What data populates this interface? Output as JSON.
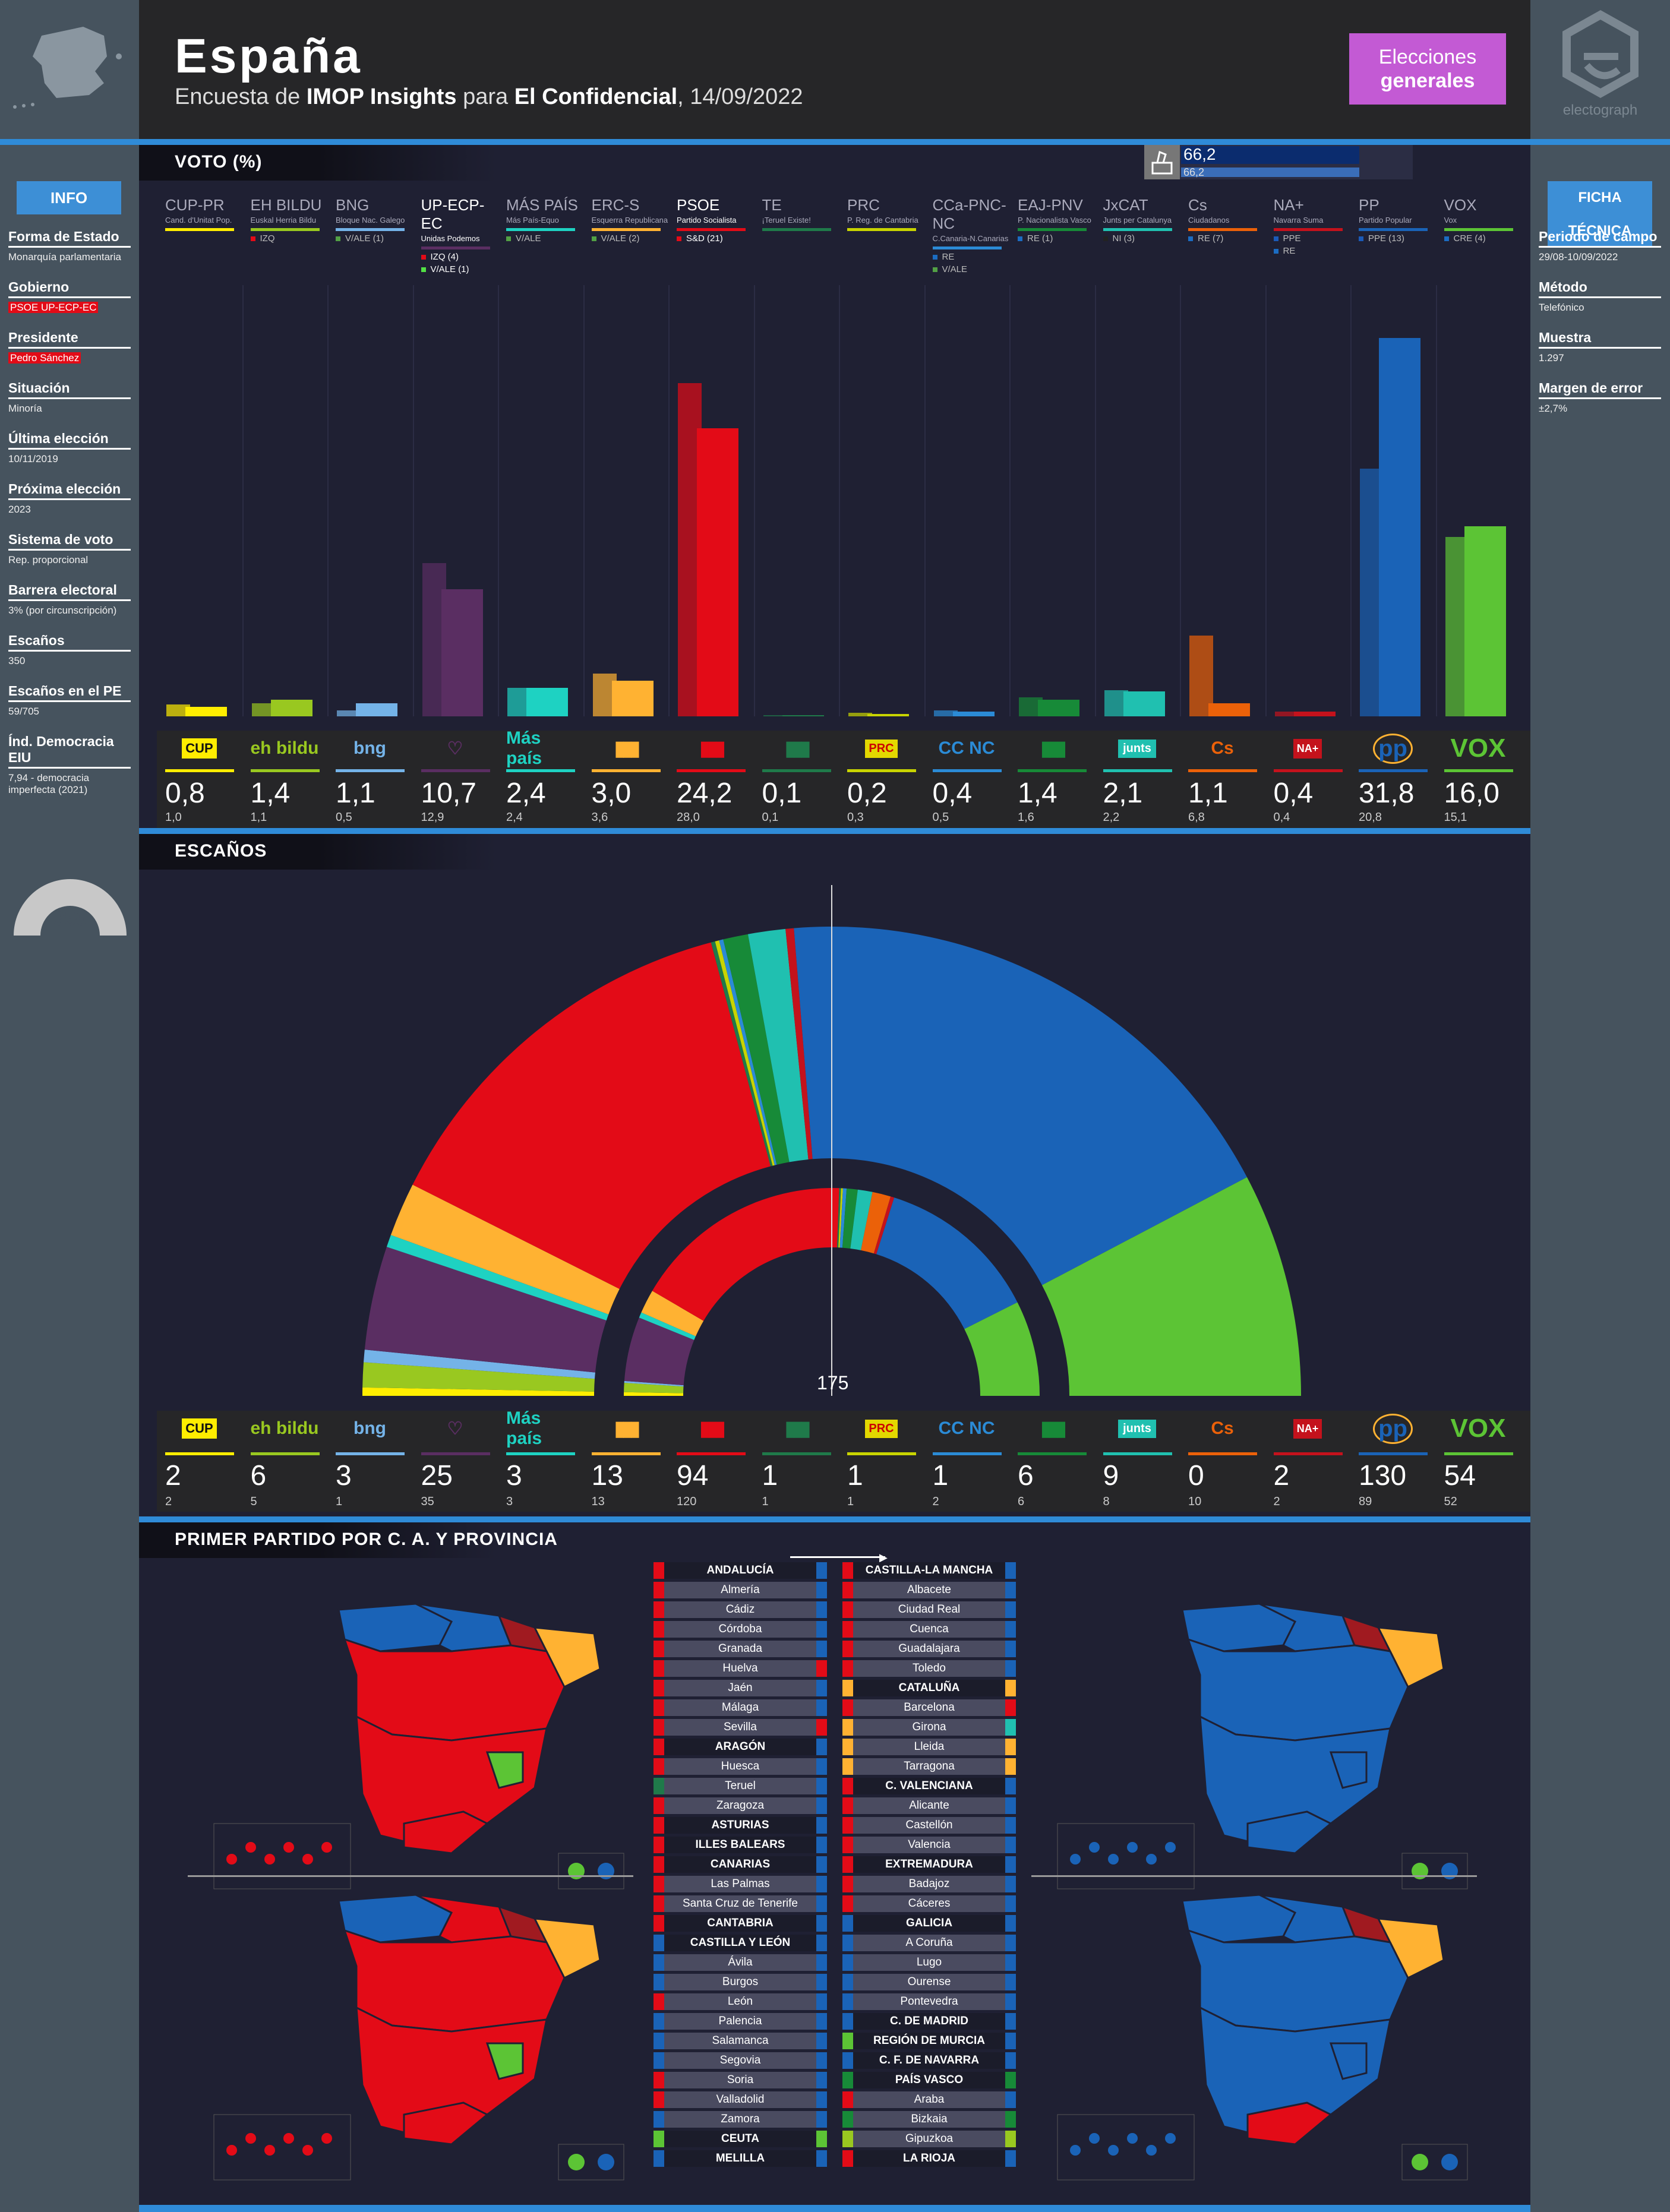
{
  "header": {
    "title": "España",
    "subtitle_prefix": "Encuesta de",
    "pollster": "IMOP Insights",
    "subtitle_mid": "para",
    "media": "El Confidencial",
    "date": "14/09/2022",
    "badge_line1": "Elecciones",
    "badge_line2": "generales",
    "brand": "electograph"
  },
  "info": {
    "button": "INFO",
    "items": [
      {
        "label": "Forma de Estado",
        "value": "Monarquía parlamentaria"
      },
      {
        "label": "Gobierno",
        "value": "PSOE UP-ECP-EC"
      },
      {
        "label": "Presidente",
        "value": "Pedro Sánchez"
      },
      {
        "label": "Situación",
        "value": "Minoría"
      },
      {
        "label": "Última elección",
        "value": "10/11/2019"
      },
      {
        "label": "Próxima elección",
        "value": "2023"
      },
      {
        "label": "Sistema de voto",
        "value": "Rep. proporcional"
      },
      {
        "label": "Barrera electoral",
        "value": "3% (por circunscripción)"
      },
      {
        "label": "Escaños",
        "value": "350"
      },
      {
        "label": "Escaños en el PE",
        "value": "59/705"
      },
      {
        "label": "Índ. Democracia EIU",
        "value": "7,94 - democracia imperfecta (2021)"
      }
    ]
  },
  "ficha": {
    "button": "FICHA TÉCNICA",
    "items": [
      {
        "label": "Periodo de campo",
        "value": "29/08-10/09/2022"
      },
      {
        "label": "Método",
        "value": "Telefónico"
      },
      {
        "label": "Muestra",
        "value": "1.297"
      },
      {
        "label": "Margen de error",
        "value": "±2,7%"
      }
    ]
  },
  "vote_section": {
    "title": "VOTO (%)",
    "top_value": "66,2",
    "top_prev": "66,2"
  },
  "seats_section": {
    "title": "ESCAÑOS",
    "total": "350",
    "majority": "175"
  },
  "map_section": {
    "title": "PRIMER PARTIDO POR C. A. Y PROVINCIA"
  },
  "chart_data": {
    "type": "bar",
    "title": "VOTO (%)",
    "categories": [
      "CUP-PR",
      "EH BILDU",
      "BNG",
      "UP-ECP-EC",
      "MÁS PAÍS",
      "ERC-S",
      "PSOE",
      "TE",
      "PRC",
      "CCa-PNC-NC",
      "EAJ-PNV",
      "JxCAT",
      "Cs",
      "NA+",
      "PP",
      "VOX"
    ],
    "series": [
      {
        "name": "poll",
        "values": [
          0.8,
          1.4,
          1.1,
          10.7,
          2.4,
          3.0,
          24.2,
          0.1,
          0.2,
          0.4,
          1.4,
          2.1,
          1.1,
          0.4,
          31.8,
          16.0
        ]
      },
      {
        "name": "prev",
        "values": [
          1.0,
          1.1,
          0.5,
          12.9,
          2.4,
          3.6,
          28.0,
          0.1,
          0.3,
          0.5,
          1.6,
          2.2,
          6.8,
          0.4,
          20.8,
          15.1
        ]
      }
    ],
    "ylim": [
      0,
      36
    ]
  },
  "parties": [
    {
      "short": "CUP-PR",
      "full": "Cand. d'Unitat Pop.",
      "color": "#ffed00",
      "alliances": [],
      "vote": "0,8",
      "vote_prev": "1,0",
      "seats": "2",
      "seats_prev": "2",
      "logo": "CUP"
    },
    {
      "short": "EH BILDU",
      "full": "Euskal Herria Bildu",
      "color": "#99c820",
      "alliances": [
        {
          "t": "IZQ",
          "c": "#e30b17"
        }
      ],
      "vote": "1,4",
      "vote_prev": "1,1",
      "seats": "6",
      "seats_prev": "5",
      "logo": "eh bildu"
    },
    {
      "short": "BNG",
      "full": "Bloque Nac. Galego",
      "color": "#74b3e8",
      "alliances": [
        {
          "t": "V/ALE (1)",
          "c": "#52a045"
        }
      ],
      "vote": "1,1",
      "vote_prev": "0,5",
      "seats": "3",
      "seats_prev": "1",
      "logo": "bng"
    },
    {
      "short": "UP-ECP-EC",
      "full": "Unidas Podemos",
      "color": "#5a2e62",
      "alliances": [
        {
          "t": "IZQ (4)",
          "c": "#e30b17"
        },
        {
          "t": "V/ALE (1)",
          "c": "#52e045"
        }
      ],
      "vote": "10,7",
      "vote_prev": "12,9",
      "seats": "25",
      "seats_prev": "35",
      "logo": "♡"
    },
    {
      "short": "MÁS PAÍS",
      "full": "Más País-Equo",
      "color": "#1ed2c2",
      "alliances": [
        {
          "t": "V/ALE",
          "c": "#52a045"
        }
      ],
      "vote": "2,4",
      "vote_prev": "2,4",
      "seats": "3",
      "seats_prev": "3",
      "logo": "Más país"
    },
    {
      "short": "ERC-S",
      "full": "Esquerra Republicana",
      "color": "#ffb232",
      "alliances": [
        {
          "t": "V/ALE (2)",
          "c": "#52a045"
        }
      ],
      "vote": "3,0",
      "vote_prev": "3,6",
      "seats": "13",
      "seats_prev": "13",
      "logo": "ERC"
    },
    {
      "short": "PSOE",
      "full": "Partido Socialista",
      "color": "#e30b17",
      "alliances": [
        {
          "t": "S&D (21)",
          "c": "#e30b17"
        }
      ],
      "vote": "24,2",
      "vote_prev": "28,0",
      "seats": "94",
      "seats_prev": "120",
      "logo": "PSOE"
    },
    {
      "short": "TE",
      "full": "¡Teruel Existe!",
      "color": "#1f7a4a",
      "alliances": [],
      "vote": "0,1",
      "vote_prev": "0,1",
      "seats": "1",
      "seats_prev": "1",
      "logo": "TE"
    },
    {
      "short": "PRC",
      "full": "P. Reg. de Cantabria",
      "color": "#c8d400",
      "alliances": [],
      "vote": "0,2",
      "vote_prev": "0,3",
      "seats": "1",
      "seats_prev": "1",
      "logo": "PRC"
    },
    {
      "short": "CCa-PNC-NC",
      "full": "C.Canaria-N.Canarias",
      "color": "#2b8bd6",
      "alliances": [
        {
          "t": "RE",
          "c": "#1b6cc2"
        },
        {
          "t": "V/ALE",
          "c": "#52a045"
        }
      ],
      "vote": "0,4",
      "vote_prev": "0,5",
      "seats": "1",
      "seats_prev": "2",
      "logo": "CC NC"
    },
    {
      "short": "EAJ-PNV",
      "full": "P. Nacionalista Vasco",
      "color": "#178a38",
      "alliances": [
        {
          "t": "RE (1)",
          "c": "#1b6cc2"
        }
      ],
      "vote": "1,4",
      "vote_prev": "1,6",
      "seats": "6",
      "seats_prev": "6",
      "logo": "PNV"
    },
    {
      "short": "JxCAT",
      "full": "Junts per Catalunya",
      "color": "#20c0b0",
      "alliances": [
        {
          "t": "NI (3)",
          "c": "#222"
        }
      ],
      "vote": "2,1",
      "vote_prev": "2,2",
      "seats": "9",
      "seats_prev": "8",
      "logo": "junts"
    },
    {
      "short": "Cs",
      "full": "Ciudadanos",
      "color": "#eb6109",
      "alliances": [
        {
          "t": "RE (7)",
          "c": "#1b6cc2"
        }
      ],
      "vote": "1,1",
      "vote_prev": "6,8",
      "seats": "0",
      "seats_prev": "10",
      "logo": "Cs"
    },
    {
      "short": "NA+",
      "full": "Navarra Suma",
      "color": "#c4121c",
      "alliances": [
        {
          "t": "PPE",
          "c": "#1b5ab8"
        },
        {
          "t": "RE",
          "c": "#1b6cc2"
        }
      ],
      "vote": "0,4",
      "vote_prev": "0,4",
      "seats": "2",
      "seats_prev": "2",
      "logo": "NA+"
    },
    {
      "short": "PP",
      "full": "Partido Popular",
      "color": "#1a63b7",
      "alliances": [
        {
          "t": "PPE (13)",
          "c": "#1b5ab8"
        }
      ],
      "vote": "31,8",
      "vote_prev": "20,8",
      "seats": "130",
      "seats_prev": "89",
      "logo": "pp"
    },
    {
      "short": "VOX",
      "full": "Vox",
      "color": "#5cc435",
      "alliances": [
        {
          "t": "CRE (4)",
          "c": "#1b6cc2"
        }
      ],
      "vote": "16,0",
      "vote_prev": "15,1",
      "seats": "54",
      "seats_prev": "52",
      "logo": "VOX"
    }
  ],
  "provinces_left": [
    {
      "name": "ANDALUCÍA",
      "h": true,
      "l": "#e30b17",
      "r": "#1a63b7"
    },
    {
      "name": "Almería",
      "l": "#e30b17",
      "r": "#1a63b7"
    },
    {
      "name": "Cádiz",
      "l": "#e30b17",
      "r": "#1a63b7"
    },
    {
      "name": "Córdoba",
      "l": "#e30b17",
      "r": "#1a63b7"
    },
    {
      "name": "Granada",
      "l": "#e30b17",
      "r": "#1a63b7"
    },
    {
      "name": "Huelva",
      "l": "#e30b17",
      "r": "#e30b17"
    },
    {
      "name": "Jaén",
      "l": "#e30b17",
      "r": "#1a63b7"
    },
    {
      "name": "Málaga",
      "l": "#e30b17",
      "r": "#1a63b7"
    },
    {
      "name": "Sevilla",
      "l": "#e30b17",
      "r": "#e30b17"
    },
    {
      "name": "ARAGÓN",
      "h": true,
      "l": "#e30b17",
      "r": "#1a63b7"
    },
    {
      "name": "Huesca",
      "l": "#e30b17",
      "r": "#1a63b7"
    },
    {
      "name": "Teruel",
      "l": "#1f7a4a",
      "r": "#1a63b7"
    },
    {
      "name": "Zaragoza",
      "l": "#e30b17",
      "r": "#1a63b7"
    },
    {
      "name": "ASTURIAS",
      "h": true,
      "l": "#e30b17",
      "r": "#1a63b7"
    },
    {
      "name": "ILLES BALEARS",
      "h": true,
      "l": "#e30b17",
      "r": "#1a63b7"
    },
    {
      "name": "CANARIAS",
      "h": true,
      "l": "#e30b17",
      "r": "#1a63b7"
    },
    {
      "name": "Las Palmas",
      "l": "#e30b17",
      "r": "#1a63b7"
    },
    {
      "name": "Santa Cruz de Tenerife",
      "l": "#e30b17",
      "r": "#1a63b7"
    },
    {
      "name": "CANTABRIA",
      "h": true,
      "l": "#e30b17",
      "r": "#1a63b7"
    },
    {
      "name": "CASTILLA Y LEÓN",
      "h": true,
      "l": "#1a63b7",
      "r": "#1a63b7"
    },
    {
      "name": "Ávila",
      "l": "#1a63b7",
      "r": "#1a63b7"
    },
    {
      "name": "Burgos",
      "l": "#1a63b7",
      "r": "#1a63b7"
    },
    {
      "name": "León",
      "l": "#e30b17",
      "r": "#1a63b7"
    },
    {
      "name": "Palencia",
      "l": "#1a63b7",
      "r": "#1a63b7"
    },
    {
      "name": "Salamanca",
      "l": "#1a63b7",
      "r": "#1a63b7"
    },
    {
      "name": "Segovia",
      "l": "#1a63b7",
      "r": "#1a63b7"
    },
    {
      "name": "Soria",
      "l": "#e30b17",
      "r": "#1a63b7"
    },
    {
      "name": "Valladolid",
      "l": "#e30b17",
      "r": "#1a63b7"
    },
    {
      "name": "Zamora",
      "l": "#1a63b7",
      "r": "#1a63b7"
    },
    {
      "name": "CEUTA",
      "h": true,
      "l": "#5cc435",
      "r": "#5cc435"
    },
    {
      "name": "MELILLA",
      "h": true,
      "l": "#1a63b7",
      "r": "#1a63b7"
    }
  ],
  "provinces_right": [
    {
      "name": "CASTILLA-LA MANCHA",
      "h": true,
      "l": "#e30b17",
      "r": "#1a63b7"
    },
    {
      "name": "Albacete",
      "l": "#e30b17",
      "r": "#1a63b7"
    },
    {
      "name": "Ciudad Real",
      "l": "#e30b17",
      "r": "#1a63b7"
    },
    {
      "name": "Cuenca",
      "l": "#e30b17",
      "r": "#1a63b7"
    },
    {
      "name": "Guadalajara",
      "l": "#e30b17",
      "r": "#1a63b7"
    },
    {
      "name": "Toledo",
      "l": "#e30b17",
      "r": "#1a63b7"
    },
    {
      "name": "CATALUÑA",
      "h": true,
      "l": "#ffb232",
      "r": "#ffb232"
    },
    {
      "name": "Barcelona",
      "l": "#e30b17",
      "r": "#e30b17"
    },
    {
      "name": "Girona",
      "l": "#ffb232",
      "r": "#20c0b0"
    },
    {
      "name": "Lleida",
      "l": "#ffb232",
      "r": "#ffb232"
    },
    {
      "name": "Tarragona",
      "l": "#ffb232",
      "r": "#ffb232"
    },
    {
      "name": "C. VALENCIANA",
      "h": true,
      "l": "#e30b17",
      "r": "#1a63b7"
    },
    {
      "name": "Alicante",
      "l": "#e30b17",
      "r": "#1a63b7"
    },
    {
      "name": "Castellón",
      "l": "#e30b17",
      "r": "#1a63b7"
    },
    {
      "name": "Valencia",
      "l": "#e30b17",
      "r": "#1a63b7"
    },
    {
      "name": "EXTREMADURA",
      "h": true,
      "l": "#e30b17",
      "r": "#1a63b7"
    },
    {
      "name": "Badajoz",
      "l": "#e30b17",
      "r": "#1a63b7"
    },
    {
      "name": "Cáceres",
      "l": "#e30b17",
      "r": "#1a63b7"
    },
    {
      "name": "GALICIA",
      "h": true,
      "l": "#1a63b7",
      "r": "#1a63b7"
    },
    {
      "name": "A Coruña",
      "l": "#1a63b7",
      "r": "#1a63b7"
    },
    {
      "name": "Lugo",
      "l": "#1a63b7",
      "r": "#1a63b7"
    },
    {
      "name": "Ourense",
      "l": "#1a63b7",
      "r": "#1a63b7"
    },
    {
      "name": "Pontevedra",
      "l": "#1a63b7",
      "r": "#1a63b7"
    },
    {
      "name": "C. DE MADRID",
      "h": true,
      "l": "#1a63b7",
      "r": "#1a63b7"
    },
    {
      "name": "REGIÓN DE MURCIA",
      "h": true,
      "l": "#5cc435",
      "r": "#1a63b7"
    },
    {
      "name": "C. F. DE NAVARRA",
      "h": true,
      "l": "#1a63b7",
      "r": "#1a63b7"
    },
    {
      "name": "PAÍS VASCO",
      "h": true,
      "l": "#178a38",
      "r": "#178a38"
    },
    {
      "name": "Araba",
      "l": "#e30b17",
      "r": "#1a63b7"
    },
    {
      "name": "Bizkaia",
      "l": "#178a38",
      "r": "#178a38"
    },
    {
      "name": "Gipuzkoa",
      "l": "#99c820",
      "r": "#99c820"
    },
    {
      "name": "LA RIOJA",
      "h": true,
      "l": "#e30b17",
      "r": "#1a63b7"
    }
  ]
}
